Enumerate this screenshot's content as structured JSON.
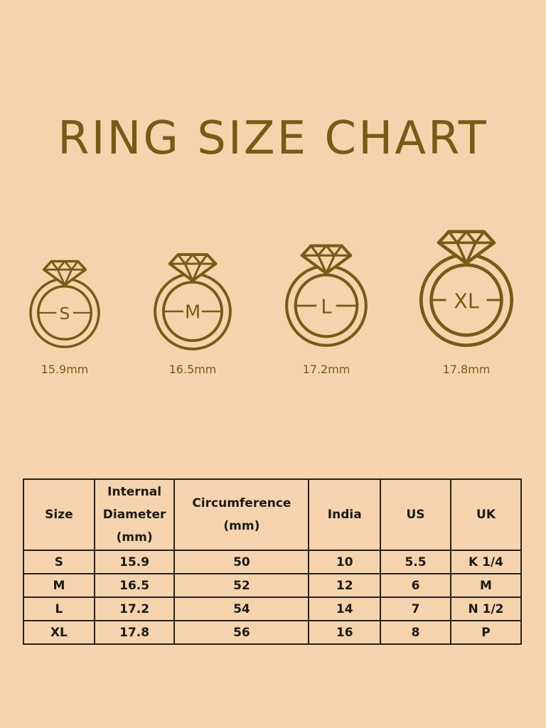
{
  "title": "RING SIZE CHART",
  "colors": {
    "background": "#f5d4ad",
    "gold": "#7a5a14",
    "table_border": "#222222"
  },
  "rings": [
    {
      "label": "S",
      "diameter": "15.9mm"
    },
    {
      "label": "M",
      "diameter": "16.5mm"
    },
    {
      "label": "L",
      "diameter": "17.2mm"
    },
    {
      "label": "XL",
      "diameter": "17.8mm"
    }
  ],
  "table": {
    "headers": [
      "Size",
      "Internal Diameter (mm)",
      "Circumference (mm)",
      "India",
      "US",
      "UK"
    ],
    "rows": [
      [
        "S",
        "15.9",
        "50",
        "10",
        "5.5",
        "K 1/4"
      ],
      [
        "M",
        "16.5",
        "52",
        "12",
        "6",
        "M"
      ],
      [
        "L",
        "17.2",
        "54",
        "14",
        "7",
        "N 1/2"
      ],
      [
        "XL",
        "17.8",
        "56",
        "16",
        "8",
        "P"
      ]
    ]
  }
}
